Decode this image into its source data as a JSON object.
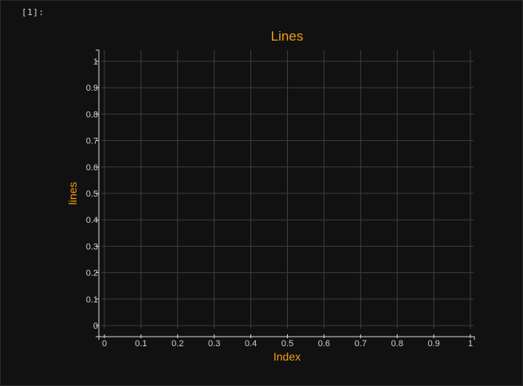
{
  "notebook": {
    "output_prompt": "[1]:"
  },
  "colors": {
    "background": "#111111",
    "grid": "#3d3d3d",
    "axis": "#d9d9d9",
    "tick_label": "#cfcfcf",
    "accent": "#f39c12"
  },
  "chart_data": {
    "type": "line",
    "title": "Lines",
    "xlabel": "Index",
    "ylabel": "lines",
    "xlim": [
      0,
      1
    ],
    "ylim": [
      0,
      1
    ],
    "x_ticks": [
      "0",
      "0.1",
      "0.2",
      "0.3",
      "0.4",
      "0.5",
      "0.6",
      "0.7",
      "0.8",
      "0.9",
      "1"
    ],
    "y_ticks": [
      "0",
      "0.1",
      "0.2",
      "0.3",
      "0.4",
      "0.5",
      "0.6",
      "0.7",
      "0.8",
      "0.9",
      "1"
    ],
    "series": [],
    "grid": true,
    "legend": "none"
  }
}
